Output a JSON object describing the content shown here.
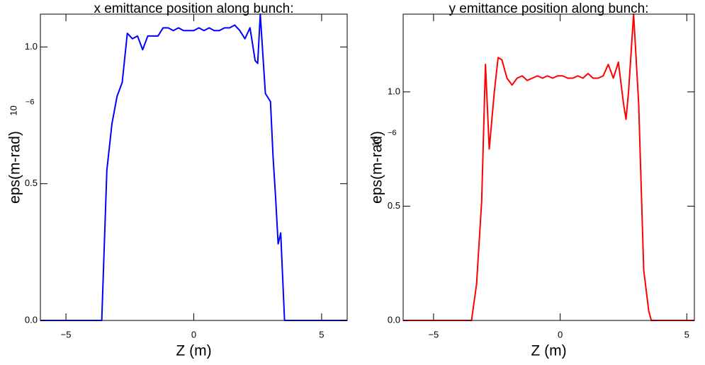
{
  "chart_data": [
    {
      "type": "line",
      "title": "x emittance position along bunch:",
      "x_label": "Z (m)",
      "y_label": "eps(m-rad)",
      "y_scale_base": "10",
      "y_scale_exp": "−6",
      "x": [
        -6,
        -3.6,
        -3.4,
        -3.2,
        -3.0,
        -2.8,
        -2.6,
        -2.4,
        -2.2,
        -2.0,
        -1.8,
        -1.6,
        -1.4,
        -1.2,
        -1.0,
        -0.8,
        -0.6,
        -0.4,
        -0.2,
        0,
        0.2,
        0.4,
        0.6,
        0.8,
        1.0,
        1.2,
        1.4,
        1.6,
        1.8,
        2.0,
        2.2,
        2.4,
        2.5,
        2.6,
        2.8,
        3.0,
        3.1,
        3.2,
        3.3,
        3.4,
        3.55,
        6
      ],
      "values": [
        0,
        0,
        0.55,
        0.72,
        0.82,
        0.87,
        1.05,
        1.03,
        1.04,
        0.99,
        1.04,
        1.04,
        1.04,
        1.07,
        1.07,
        1.06,
        1.07,
        1.06,
        1.06,
        1.06,
        1.07,
        1.06,
        1.07,
        1.06,
        1.06,
        1.07,
        1.07,
        1.08,
        1.06,
        1.03,
        1.07,
        0.95,
        0.94,
        1.12,
        0.83,
        0.8,
        0.6,
        0.45,
        0.28,
        0.32,
        0,
        0
      ],
      "color": "#0000ff",
      "xlim": [
        -6,
        6
      ],
      "ylim": [
        0,
        1.12
      ],
      "xticks": [
        {
          "value": -5,
          "label": "−5"
        },
        0,
        5
      ],
      "yticks": [
        {
          "value": 0,
          "label": "0.0"
        },
        {
          "value": 0.5,
          "label": "0.5"
        },
        {
          "value": 1,
          "label": "1.0"
        }
      ]
    },
    {
      "type": "line",
      "title": "y emittance position along bunch:",
      "x_label": "Z (m)",
      "y_label": "eps(m-rad)",
      "y_scale_base": "10",
      "y_scale_exp": "−6",
      "x": [
        -6.2,
        -3.5,
        -3.3,
        -3.1,
        -2.95,
        -2.8,
        -2.6,
        -2.45,
        -2.3,
        -2.1,
        -1.9,
        -1.7,
        -1.5,
        -1.3,
        -1.1,
        -0.9,
        -0.7,
        -0.5,
        -0.3,
        -0.1,
        0.1,
        0.3,
        0.5,
        0.7,
        0.9,
        1.1,
        1.3,
        1.5,
        1.7,
        1.9,
        2.1,
        2.3,
        2.5,
        2.6,
        2.7,
        2.9,
        3.1,
        3.3,
        3.5,
        3.6,
        5.3
      ],
      "values": [
        0,
        0,
        0.16,
        0.52,
        1.12,
        0.75,
        1.0,
        1.15,
        1.14,
        1.06,
        1.03,
        1.06,
        1.07,
        1.05,
        1.06,
        1.07,
        1.06,
        1.07,
        1.06,
        1.07,
        1.07,
        1.06,
        1.06,
        1.07,
        1.06,
        1.08,
        1.06,
        1.06,
        1.07,
        1.12,
        1.06,
        1.13,
        0.95,
        0.88,
        1.0,
        1.34,
        0.95,
        0.22,
        0.04,
        0,
        0
      ],
      "color": "#ff0000",
      "xlim": [
        -6.2,
        5.3
      ],
      "ylim": [
        0,
        1.34
      ],
      "xticks": [
        {
          "value": -5,
          "label": "−5"
        },
        0,
        5
      ],
      "yticks": [
        {
          "value": 0,
          "label": "0.0"
        },
        {
          "value": 0.5,
          "label": "0.5"
        },
        {
          "value": 1,
          "label": "1.0"
        }
      ]
    }
  ]
}
